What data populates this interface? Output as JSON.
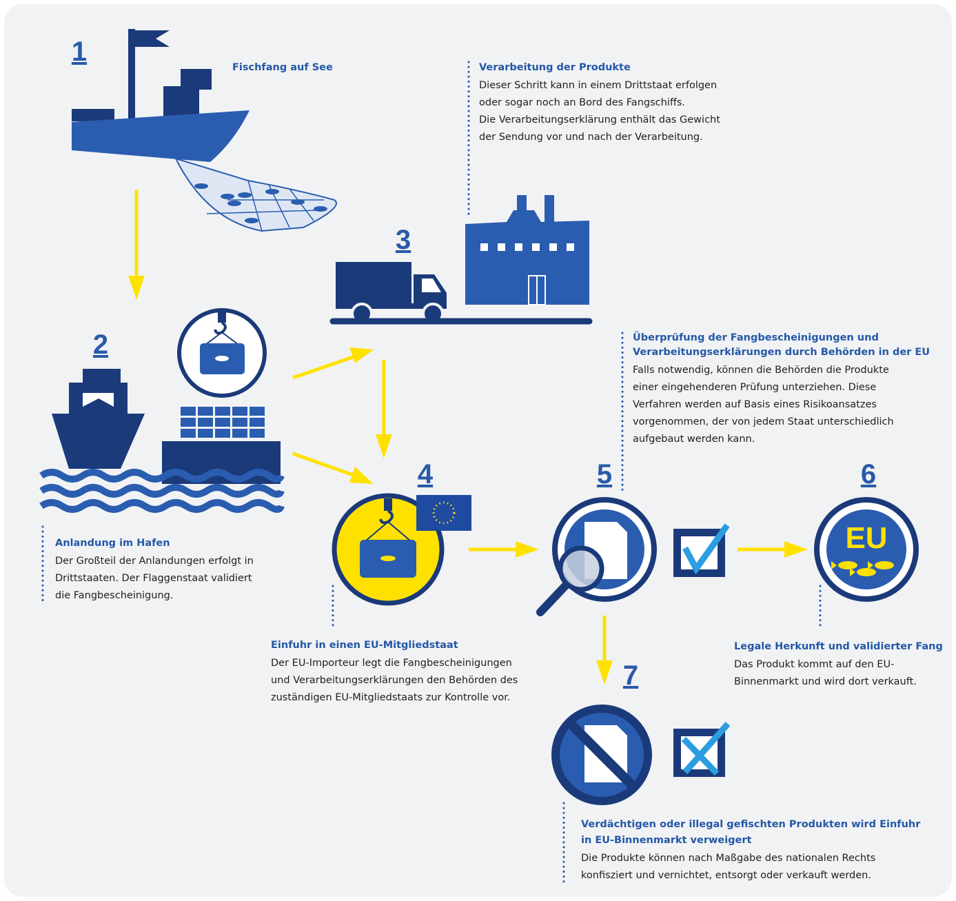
{
  "steps": [
    {
      "number": "1",
      "title": [
        "Fischfang auf See"
      ],
      "lines": []
    },
    {
      "number": "2",
      "title": [
        "Anlandung im Hafen"
      ],
      "lines": [
        "Der Großteil der Anlandungen erfolgt in",
        "Drittstaaten. Der Flaggenstaat validiert",
        "die Fangbescheinigung."
      ]
    },
    {
      "number": "3",
      "title": [
        "Verarbeitung der Produkte"
      ],
      "lines": [
        "Dieser Schritt kann in einem Drittstaat erfolgen",
        "oder sogar noch an Bord des Fangschiffs.",
        "Die Verarbeitungserklärung enthält das Gewicht",
        "der Sendung vor und nach der Verarbeitung."
      ]
    },
    {
      "number": "4",
      "title": [
        "Einfuhr in einen EU-Mitgliedstaat"
      ],
      "lines": [
        "Der EU-Importeur legt die Fangbescheinigungen",
        "und Verarbeitungserklärungen den Behörden des",
        "zuständigen EU-Mitgliedstaats zur Kontrolle vor."
      ]
    },
    {
      "number": "5",
      "title": [
        "Überprüfung der Fangbescheinigungen und",
        "Verarbeitungserklärungen durch Behörden in der EU"
      ],
      "lines": [
        "Falls notwendig, können die Behörden die Produkte",
        "einer eingehenderen Prüfung unterziehen. Diese",
        "Verfahren werden auf Basis eines Risikoansatzes",
        "vorgenommen, der von jedem Staat unterschiedlich",
        "aufgebaut werden kann."
      ]
    },
    {
      "number": "6",
      "title": [
        "Legale Herkunft und validierter Fang"
      ],
      "lines": [
        "Das Produkt kommt auf den EU-",
        "Binnenmarkt und wird dort verkauft."
      ]
    },
    {
      "number": "7",
      "title": [
        "Verdächtigen oder illegal gefischten Produkten wird Einfuhr",
        "in EU-Binnenmarkt verweigert"
      ],
      "lines": [
        "Die Produkte können nach Maßgabe des nationalen Rechts",
        "konfisziert und vernichtet, entsorgt oder verkauft werden."
      ]
    }
  ],
  "eu_badge": "EU"
}
